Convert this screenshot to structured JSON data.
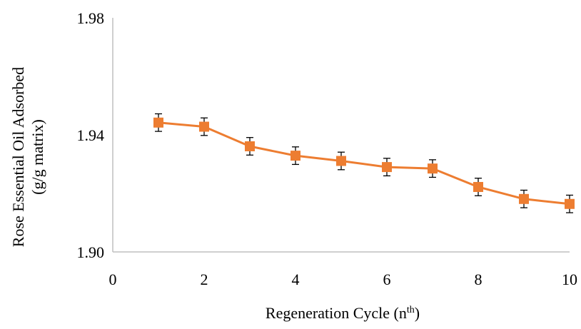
{
  "chart_data": {
    "type": "line",
    "title": "",
    "xlabel": "Regeneration Cycle (n",
    "xlabel_sup": "th",
    "xlabel_close": ")",
    "ylabel_line1": "Rose Essential Oil Adsorbed",
    "ylabel_line2": "(g/g matrix)",
    "xlim": [
      0,
      10
    ],
    "ylim": [
      1.9,
      1.98
    ],
    "x_ticks": [
      0,
      2,
      4,
      6,
      8,
      10
    ],
    "x_tick_labels": [
      "0",
      "2",
      "4",
      "6",
      "8",
      "10"
    ],
    "y_ticks": [
      1.9,
      1.94,
      1.98
    ],
    "y_tick_labels": [
      "1.90",
      "1.94",
      "1.98"
    ],
    "grid": false,
    "legend": "none",
    "series": [
      {
        "x": [
          1,
          2,
          3,
          4,
          5,
          6,
          7,
          8,
          9,
          10
        ],
        "values": [
          1.9442,
          1.9428,
          1.9361,
          1.9329,
          1.9311,
          1.929,
          1.9285,
          1.9222,
          1.9181,
          1.9164
        ],
        "error": [
          0.003,
          0.003,
          0.003,
          0.003,
          0.003,
          0.003,
          0.003,
          0.003,
          0.003,
          0.003
        ],
        "color": "#ED7D31",
        "marker": "square"
      }
    ]
  }
}
